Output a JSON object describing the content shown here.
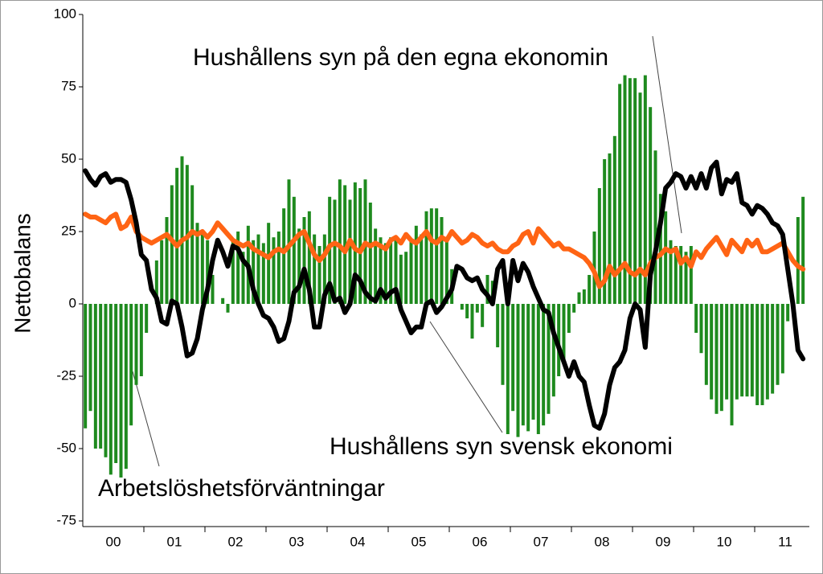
{
  "chart_data": {
    "type": "bar_line",
    "y_label": "Nettobalans",
    "annotations": [
      "Hushållens syn på den egna ekonomin",
      "Hushållens syn svensk ekonomi",
      "Arbetslöshetsförväntningar"
    ],
    "categories": [
      "00",
      null,
      null,
      null,
      null,
      null,
      null,
      null,
      null,
      null,
      null,
      null,
      "01",
      null,
      null,
      null,
      null,
      null,
      null,
      null,
      null,
      null,
      null,
      null,
      "02",
      null,
      null,
      null,
      null,
      null,
      null,
      null,
      null,
      null,
      null,
      null,
      "03",
      null,
      null,
      null,
      null,
      null,
      null,
      null,
      null,
      null,
      null,
      null,
      "04",
      null,
      null,
      null,
      null,
      null,
      null,
      null,
      null,
      null,
      null,
      null,
      "05",
      null,
      null,
      null,
      null,
      null,
      null,
      null,
      null,
      null,
      null,
      null,
      "06",
      null,
      null,
      null,
      null,
      null,
      null,
      null,
      null,
      null,
      null,
      null,
      "07",
      null,
      null,
      null,
      null,
      null,
      null,
      null,
      null,
      null,
      null,
      null,
      "08",
      null,
      null,
      null,
      null,
      null,
      null,
      null,
      null,
      null,
      null,
      null,
      "09",
      null,
      null,
      null,
      null,
      null,
      null,
      null,
      null,
      null,
      null,
      null,
      "10",
      null,
      null,
      null,
      null,
      null,
      null,
      null,
      null,
      null,
      null,
      null,
      "11",
      null,
      null,
      null,
      null,
      null,
      null,
      null,
      null,
      null
    ],
    "series": [
      {
        "name": "Arbetslöshetsförväntningar",
        "kind": "bar",
        "color": "#1e8a1e",
        "values": [
          -43,
          -37,
          -50,
          -50,
          -53,
          -59,
          -55,
          -60,
          -57,
          -42,
          -28,
          -25,
          -10,
          0,
          15,
          22,
          30,
          41,
          47,
          51,
          48,
          41,
          28,
          25,
          22,
          10,
          0,
          2,
          -3,
          22,
          25,
          18,
          27,
          22,
          24,
          21,
          28,
          23,
          25,
          33,
          43,
          37,
          26,
          30,
          32,
          24,
          20,
          24,
          37,
          36,
          43,
          41,
          36,
          42,
          40,
          43,
          35,
          26,
          23,
          21,
          23,
          22,
          17,
          18,
          22,
          27,
          24,
          32,
          33,
          33,
          30,
          22,
          12,
          0,
          -2,
          -5,
          -12,
          -3,
          -8,
          10,
          8,
          -15,
          -28,
          -45,
          -37,
          -46,
          -42,
          -44,
          -40,
          -45,
          -42,
          -38,
          -32,
          -25,
          -20,
          -10,
          -3,
          4,
          5,
          10,
          25,
          40,
          50,
          52,
          58,
          76,
          79,
          78,
          78,
          73,
          79,
          68,
          53,
          38,
          32,
          22,
          20,
          20,
          18,
          20,
          -10,
          -17,
          -28,
          -33,
          -38,
          -37,
          -33,
          -42,
          -33,
          -32,
          -32,
          -32,
          -35,
          -35,
          -33,
          -31,
          -28,
          -24,
          -6,
          0,
          30,
          37
        ]
      },
      {
        "name": "Hushållens syn på den egna ekonomin",
        "kind": "line",
        "color": "#ff6414",
        "values": [
          31,
          30,
          30,
          29,
          28,
          30,
          31,
          26,
          27,
          30,
          25,
          23,
          22,
          21,
          22,
          23,
          24,
          22,
          20,
          22,
          23,
          25,
          24,
          25,
          23,
          25,
          28,
          26,
          24,
          22,
          21,
          20,
          21,
          19,
          18,
          17,
          16,
          18,
          19,
          18,
          20,
          22,
          24,
          25,
          21,
          17,
          15,
          17,
          20,
          21,
          20,
          18,
          22,
          19,
          18,
          21,
          20,
          21,
          20,
          19,
          22,
          23,
          21,
          24,
          22,
          21,
          23,
          25,
          22,
          21,
          23,
          22,
          25,
          23,
          21,
          22,
          24,
          23,
          21,
          20,
          21,
          19,
          18,
          18,
          20,
          21,
          24,
          25,
          21,
          26,
          24,
          22,
          20,
          21,
          19,
          19,
          18,
          17,
          16,
          14,
          11,
          6,
          8,
          13,
          10,
          12,
          14,
          11,
          10,
          12,
          10,
          14,
          16,
          17,
          19,
          18,
          19,
          14,
          16,
          13,
          18,
          16,
          19,
          21,
          23,
          20,
          17,
          22,
          20,
          18,
          22,
          20,
          22,
          18,
          18,
          19,
          20,
          21,
          18,
          15,
          13,
          12
        ]
      },
      {
        "name": "Hushållens syn svensk ekonomi",
        "kind": "line",
        "color": "#000000",
        "values": [
          46,
          43,
          41,
          44,
          45,
          42,
          43,
          43,
          42,
          36,
          28,
          17,
          15,
          5,
          2,
          -6,
          -7,
          1,
          0,
          -8,
          -18,
          -17,
          -12,
          -2,
          5,
          15,
          22,
          18,
          13,
          20,
          19,
          15,
          13,
          5,
          0,
          -4,
          -5,
          -8,
          -13,
          -12,
          -6,
          4,
          6,
          12,
          5,
          -8,
          -8,
          3,
          7,
          1,
          2,
          -3,
          0,
          10,
          8,
          4,
          2,
          1,
          5,
          2,
          4,
          5,
          -2,
          -6,
          -10,
          -8,
          -8,
          0,
          1,
          -3,
          -1,
          2,
          5,
          13,
          12,
          9,
          8,
          9,
          5,
          3,
          0,
          12,
          15,
          0,
          15,
          8,
          14,
          11,
          6,
          2,
          -2,
          -3,
          -10,
          -15,
          -20,
          -25,
          -20,
          -25,
          -27,
          -35,
          -42,
          -43,
          -38,
          -28,
          -22,
          -20,
          -16,
          -5,
          0,
          -2,
          -15,
          10,
          18,
          28,
          40,
          42,
          45,
          44,
          40,
          44,
          40,
          45,
          40,
          47,
          49,
          38,
          43,
          42,
          45,
          35,
          34,
          31,
          34,
          33,
          31,
          28,
          27,
          24,
          12,
          0,
          -16,
          -19
        ]
      }
    ],
    "ylim": [
      -75,
      100
    ],
    "yticks": [
      100,
      75,
      50,
      25,
      0,
      -25,
      -50,
      -75
    ],
    "grid": false
  }
}
